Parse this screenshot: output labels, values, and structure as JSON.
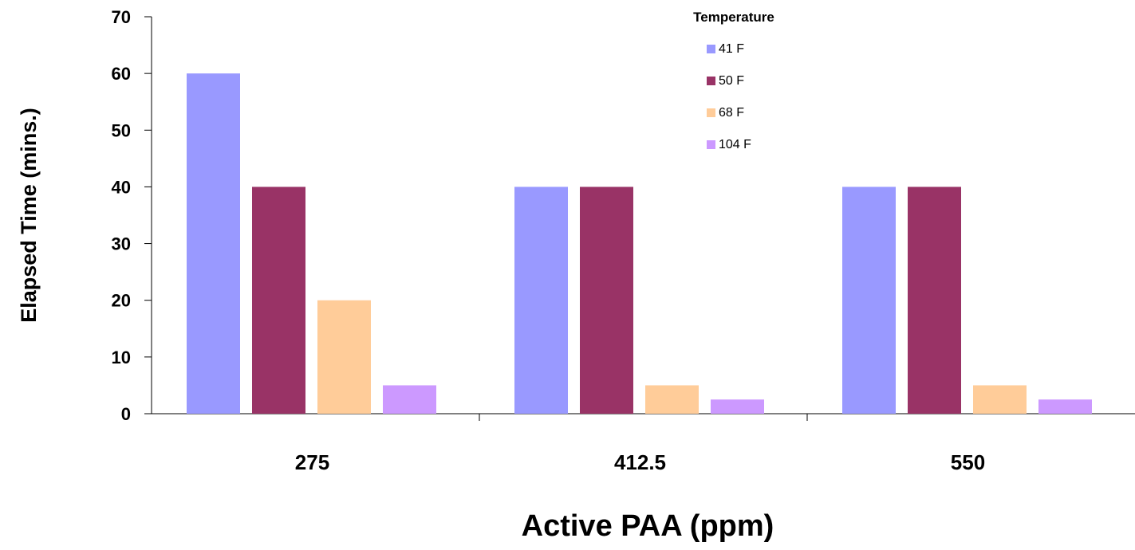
{
  "chart_data": {
    "type": "bar",
    "title": "",
    "xlabel": "Active PAA (ppm)",
    "ylabel": "Elapsed Time (mins.)",
    "categories": [
      "275",
      "412.5",
      "550"
    ],
    "ylim": [
      0,
      70
    ],
    "yticks": [
      0,
      10,
      20,
      30,
      40,
      50,
      60,
      70
    ],
    "grid": false,
    "legend": {
      "title": "Temperature",
      "placement": "top-right"
    },
    "series": [
      {
        "name": "41 F",
        "color": "#9999ff",
        "values": [
          60,
          40,
          40
        ]
      },
      {
        "name": "50 F",
        "color": "#993366",
        "values": [
          40,
          40,
          40
        ]
      },
      {
        "name": "68 F",
        "color": "#ffcc99",
        "values": [
          20,
          5,
          5
        ]
      },
      {
        "name": "104 F",
        "color": "#cc99ff",
        "values": [
          5,
          2.5,
          2.5
        ]
      }
    ]
  }
}
